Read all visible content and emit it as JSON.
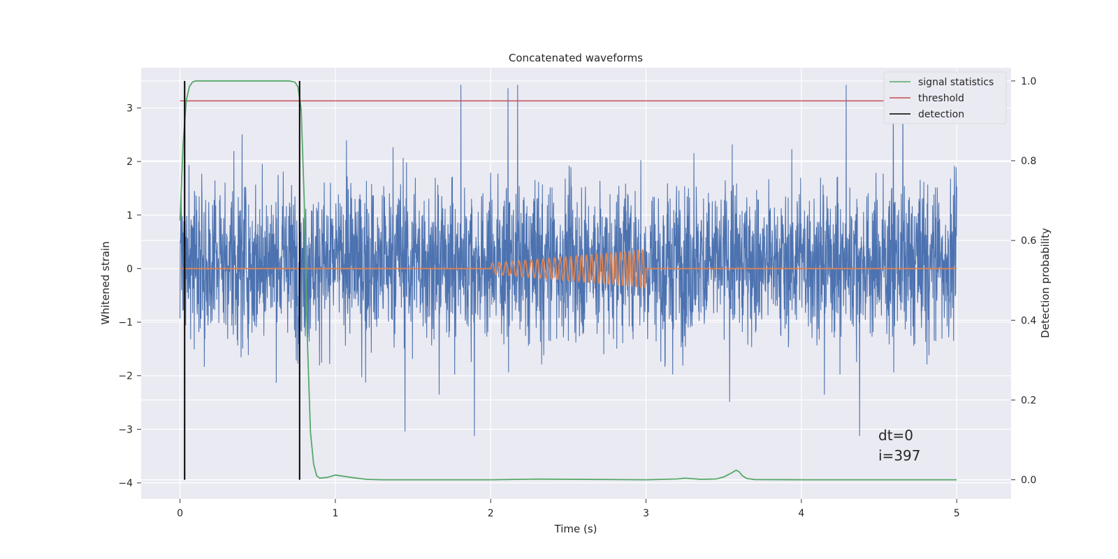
{
  "chart_data": {
    "type": "line",
    "title": "Concatenated waveforms",
    "xlabel": "Time (s)",
    "ylabel_left": "Whitened strain",
    "ylabel_right": "Detection probability",
    "xlim": [
      -0.25,
      5.35
    ],
    "ylim_left": [
      -4.3,
      3.75
    ],
    "ylim_right": [
      -0.048,
      1.033
    ],
    "x_ticks": [
      "0",
      "1",
      "2",
      "3",
      "4",
      "5"
    ],
    "y_left_ticks": [
      "−4",
      "−3",
      "−2",
      "−1",
      "0",
      "1",
      "2",
      "3"
    ],
    "y_right_ticks": [
      "0.0",
      "0.2",
      "0.4",
      "0.6",
      "0.8",
      "1.0"
    ],
    "grid": true,
    "legend_position": "top-right",
    "colors": {
      "background": "#eaeaf2",
      "grid": "#ffffff",
      "strain": "#4c72b0",
      "template": "#dd8452",
      "signal_statistics": "#55a868",
      "threshold": "#c44e52",
      "detection": "#000000"
    },
    "series": [
      {
        "name": "strain",
        "axis": "left",
        "description_type": "noise",
        "x_range": [
          0,
          5
        ],
        "typical_range": [
          -1.2,
          1.5
        ],
        "max": 3.43,
        "min": -3.98
      },
      {
        "name": "template",
        "axis": "left",
        "x": [
          0,
          2.0,
          3.0,
          5.0
        ],
        "y": [
          0,
          0,
          0,
          0
        ],
        "chirp": {
          "start": 2.0,
          "end": 3.0,
          "amp_start": 0.1,
          "amp_end": 0.35,
          "freq_start": 22,
          "freq_end": 36
        }
      },
      {
        "name": "signal statistics",
        "axis": "right",
        "x": [
          0,
          0.02,
          0.04,
          0.06,
          0.08,
          0.1,
          0.15,
          0.3,
          0.5,
          0.7,
          0.74,
          0.76,
          0.78,
          0.8,
          0.82,
          0.84,
          0.86,
          0.88,
          0.9,
          0.95,
          1.0,
          1.1,
          1.2,
          1.3,
          2.0,
          2.3,
          3.0,
          3.2,
          3.25,
          3.35,
          3.45,
          3.5,
          3.55,
          3.58,
          3.6,
          3.62,
          3.65,
          3.7,
          4.0,
          5.0
        ],
        "y": [
          0.65,
          0.84,
          0.95,
          0.985,
          0.997,
          1.0,
          1.0,
          1.0,
          1.0,
          1.0,
          0.997,
          0.985,
          0.93,
          0.7,
          0.35,
          0.12,
          0.04,
          0.01,
          0.004,
          0.006,
          0.012,
          0.006,
          0.001,
          0.0,
          0.0,
          0.0015,
          0.0,
          0.002,
          0.004,
          0.001,
          0.002,
          0.007,
          0.017,
          0.024,
          0.02,
          0.01,
          0.003,
          0.0005,
          0.0,
          0.0
        ]
      },
      {
        "name": "threshold",
        "axis": "right",
        "x": [
          0,
          5
        ],
        "y": [
          0.95,
          0.95
        ]
      },
      {
        "name": "detection",
        "axis": "right",
        "vlines": [
          0.03,
          0.77
        ],
        "y_range": [
          0,
          1.0
        ]
      }
    ],
    "legend": [
      "signal statistics",
      "threshold",
      "detection"
    ],
    "annotations": [
      "dt=0",
      "i=397"
    ]
  }
}
